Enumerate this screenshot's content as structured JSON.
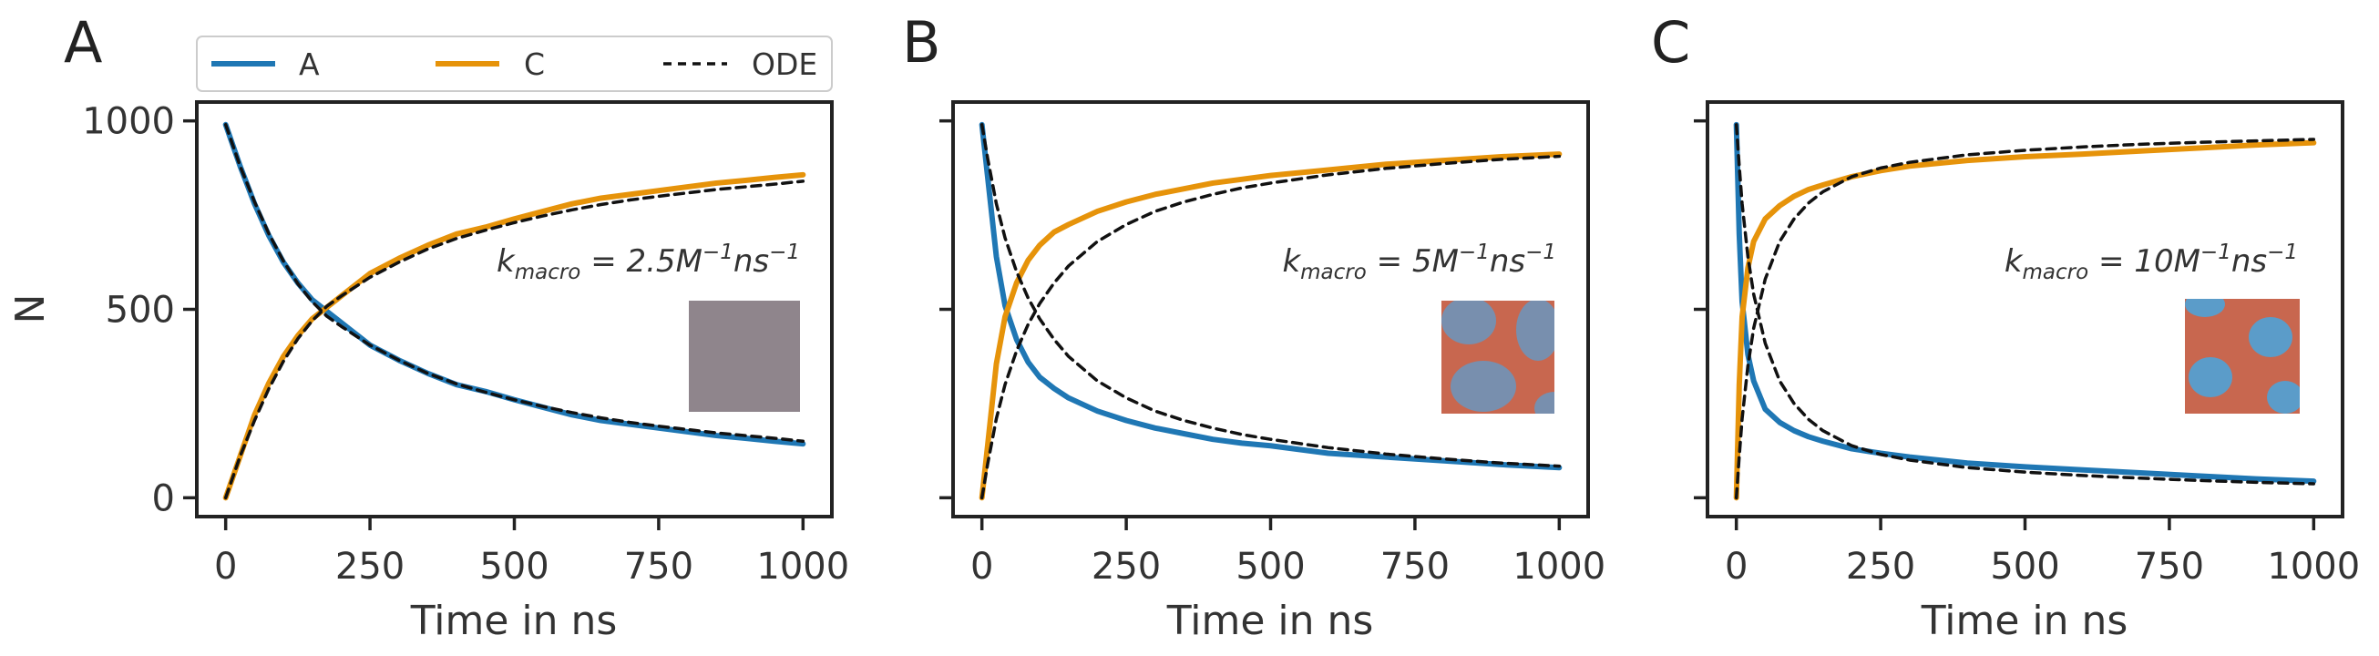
{
  "legend": {
    "entries": [
      {
        "label": "A",
        "color": "#0072b2",
        "style": "solid"
      },
      {
        "label": "C",
        "color": "#e69f00",
        "style": "solid"
      },
      {
        "label": "ODE",
        "color": "#111111",
        "style": "dashed"
      }
    ]
  },
  "colors": {
    "A": "#1f77b4",
    "C": "#e6930a",
    "ode": "#111111",
    "axes": "#222222",
    "inset_gray": "#8f858c",
    "inset_orange": "#c8674f",
    "inset_blue": "#5b9cc9"
  },
  "chart_data": [
    {
      "type": "line",
      "panel": "A",
      "xlabel": "Time in ns",
      "ylabel": "N",
      "xlim": [
        -50,
        1050
      ],
      "ylim": [
        -50,
        1050
      ],
      "xticks": [
        "0",
        "250",
        "500",
        "750",
        "1000"
      ],
      "yticks": [
        "0",
        "500",
        "1000"
      ],
      "show_ytick_labels": true,
      "annotation": {
        "k": "k",
        "sub": "macro",
        "value": " = 2.5",
        "M": "M",
        "m_exp": "−1",
        "ns": "ns",
        "ns_exp": "−1"
      },
      "inset": "gray",
      "x": [
        0,
        25,
        50,
        75,
        100,
        125,
        150,
        175,
        200,
        250,
        300,
        350,
        400,
        450,
        500,
        550,
        600,
        650,
        700,
        750,
        800,
        850,
        900,
        950,
        1000
      ],
      "series": [
        {
          "name": "A",
          "values": [
            990,
            880,
            780,
            695,
            625,
            570,
            525,
            495,
            465,
            405,
            365,
            330,
            300,
            282,
            260,
            240,
            220,
            205,
            195,
            185,
            175,
            165,
            158,
            150,
            143
          ]
        },
        {
          "name": "C",
          "values": [
            0,
            110,
            220,
            305,
            375,
            430,
            475,
            505,
            535,
            595,
            635,
            670,
            700,
            718,
            740,
            760,
            780,
            795,
            805,
            815,
            825,
            835,
            842,
            850,
            857
          ]
        },
        {
          "name": "ODE",
          "values": [
            990,
            880,
            785,
            700,
            628,
            568,
            520,
            482,
            455,
            405,
            365,
            330,
            302,
            280,
            260,
            242,
            226,
            212,
            200,
            190,
            181,
            172,
            165,
            158,
            150
          ]
        },
        {
          "name": "ODE",
          "values": [
            0,
            110,
            205,
            290,
            362,
            422,
            470,
            508,
            535,
            585,
            625,
            660,
            688,
            710,
            730,
            748,
            764,
            778,
            790,
            800,
            809,
            818,
            825,
            832,
            840
          ]
        }
      ]
    },
    {
      "type": "line",
      "panel": "B",
      "xlabel": "Time in ns",
      "ylabel": "",
      "xlim": [
        -50,
        1050
      ],
      "ylim": [
        -50,
        1050
      ],
      "xticks": [
        "0",
        "250",
        "500",
        "750",
        "1000"
      ],
      "yticks": [
        "",
        "",
        ""
      ],
      "show_ytick_labels": false,
      "annotation": {
        "k": "k",
        "sub": "macro",
        "value": " = 5",
        "M": "M",
        "m_exp": "−1",
        "ns": "ns",
        "ns_exp": "−1"
      },
      "inset": "spots",
      "x": [
        0,
        10,
        25,
        40,
        60,
        80,
        100,
        125,
        150,
        200,
        250,
        300,
        350,
        400,
        450,
        500,
        600,
        700,
        800,
        900,
        1000
      ],
      "series": [
        {
          "name": "A",
          "values": [
            990,
            850,
            640,
            510,
            420,
            360,
            320,
            290,
            265,
            230,
            205,
            185,
            170,
            155,
            145,
            138,
            118,
            108,
            98,
            88,
            80
          ]
        },
        {
          "name": "C",
          "values": [
            0,
            140,
            355,
            480,
            570,
            630,
            670,
            705,
            725,
            760,
            785,
            805,
            820,
            835,
            845,
            855,
            870,
            885,
            895,
            905,
            912
          ]
        },
        {
          "name": "ODE",
          "values": [
            990,
            900,
            780,
            690,
            600,
            530,
            475,
            420,
            375,
            310,
            265,
            230,
            205,
            185,
            168,
            155,
            133,
            116,
            103,
            92,
            84
          ]
        },
        {
          "name": "ODE",
          "values": [
            0,
            90,
            210,
            300,
            390,
            460,
            515,
            570,
            615,
            680,
            725,
            760,
            785,
            805,
            822,
            835,
            857,
            874,
            887,
            898,
            906
          ]
        }
      ]
    },
    {
      "type": "line",
      "panel": "C",
      "xlabel": "Time in ns",
      "ylabel": "",
      "xlim": [
        -50,
        1050
      ],
      "ylim": [
        -50,
        1050
      ],
      "xticks": [
        "0",
        "250",
        "500",
        "750",
        "1000"
      ],
      "yticks": [
        "",
        "",
        ""
      ],
      "show_ytick_labels": false,
      "annotation": {
        "k": "k",
        "sub": "macro",
        "value": " = 10",
        "M": "M",
        "m_exp": "−1",
        "ns": "ns",
        "ns_exp": "−1"
      },
      "inset": "spots",
      "x": [
        0,
        5,
        10,
        20,
        30,
        50,
        75,
        100,
        125,
        150,
        200,
        250,
        300,
        400,
        500,
        600,
        700,
        800,
        900,
        1000
      ],
      "series": [
        {
          "name": "A",
          "values": [
            990,
            700,
            520,
            380,
            310,
            235,
            200,
            178,
            162,
            150,
            130,
            118,
            108,
            92,
            82,
            74,
            66,
            58,
            50,
            44
          ]
        },
        {
          "name": "C",
          "values": [
            0,
            300,
            480,
            610,
            680,
            740,
            775,
            800,
            818,
            830,
            852,
            868,
            880,
            895,
            905,
            912,
            920,
            928,
            936,
            942
          ]
        },
        {
          "name": "ODE",
          "values": [
            990,
            880,
            780,
            640,
            540,
            410,
            310,
            250,
            208,
            178,
            138,
            115,
            100,
            80,
            68,
            59,
            52,
            46,
            41,
            37
          ]
        },
        {
          "name": "ODE",
          "values": [
            0,
            110,
            210,
            350,
            450,
            580,
            680,
            740,
            782,
            812,
            852,
            875,
            890,
            910,
            922,
            931,
            938,
            943,
            947,
            951
          ]
        }
      ]
    }
  ]
}
